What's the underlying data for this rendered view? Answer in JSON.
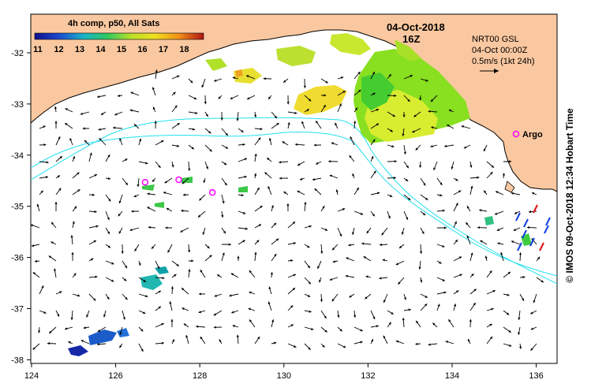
{
  "map": {
    "date": "04-Oct-2018",
    "hour": "16Z",
    "colorbar": {
      "title": "4h comp, p50, All Sats",
      "ticks": [
        "11",
        "12",
        "13",
        "14",
        "15",
        "16",
        "17",
        "18"
      ]
    },
    "current_info": {
      "source": "NRT00 GSL",
      "time": "04-Oct 00:00Z",
      "scale": "0.5m/s (1kt 24h)"
    },
    "argo": {
      "legend_label": "Argo",
      "color": "#ff00ff",
      "floats": [
        {
          "lon": 126.7,
          "lat": -34.53
        },
        {
          "lon": 127.5,
          "lat": -34.48
        },
        {
          "lon": 128.3,
          "lat": -34.73
        }
      ]
    },
    "x_ticks": [
      "124",
      "126",
      "128",
      "130",
      "132",
      "134",
      "136"
    ],
    "y_ticks": [
      "-32",
      "-33",
      "-34",
      "-35",
      "-36",
      "-37",
      "-38"
    ],
    "credit": "© IMOS 09-Oct-2018 12:34 Hobart Time",
    "colors": {
      "land": "#fac8a0",
      "contour": "#22e0ee",
      "arrow": "#000000"
    }
  }
}
